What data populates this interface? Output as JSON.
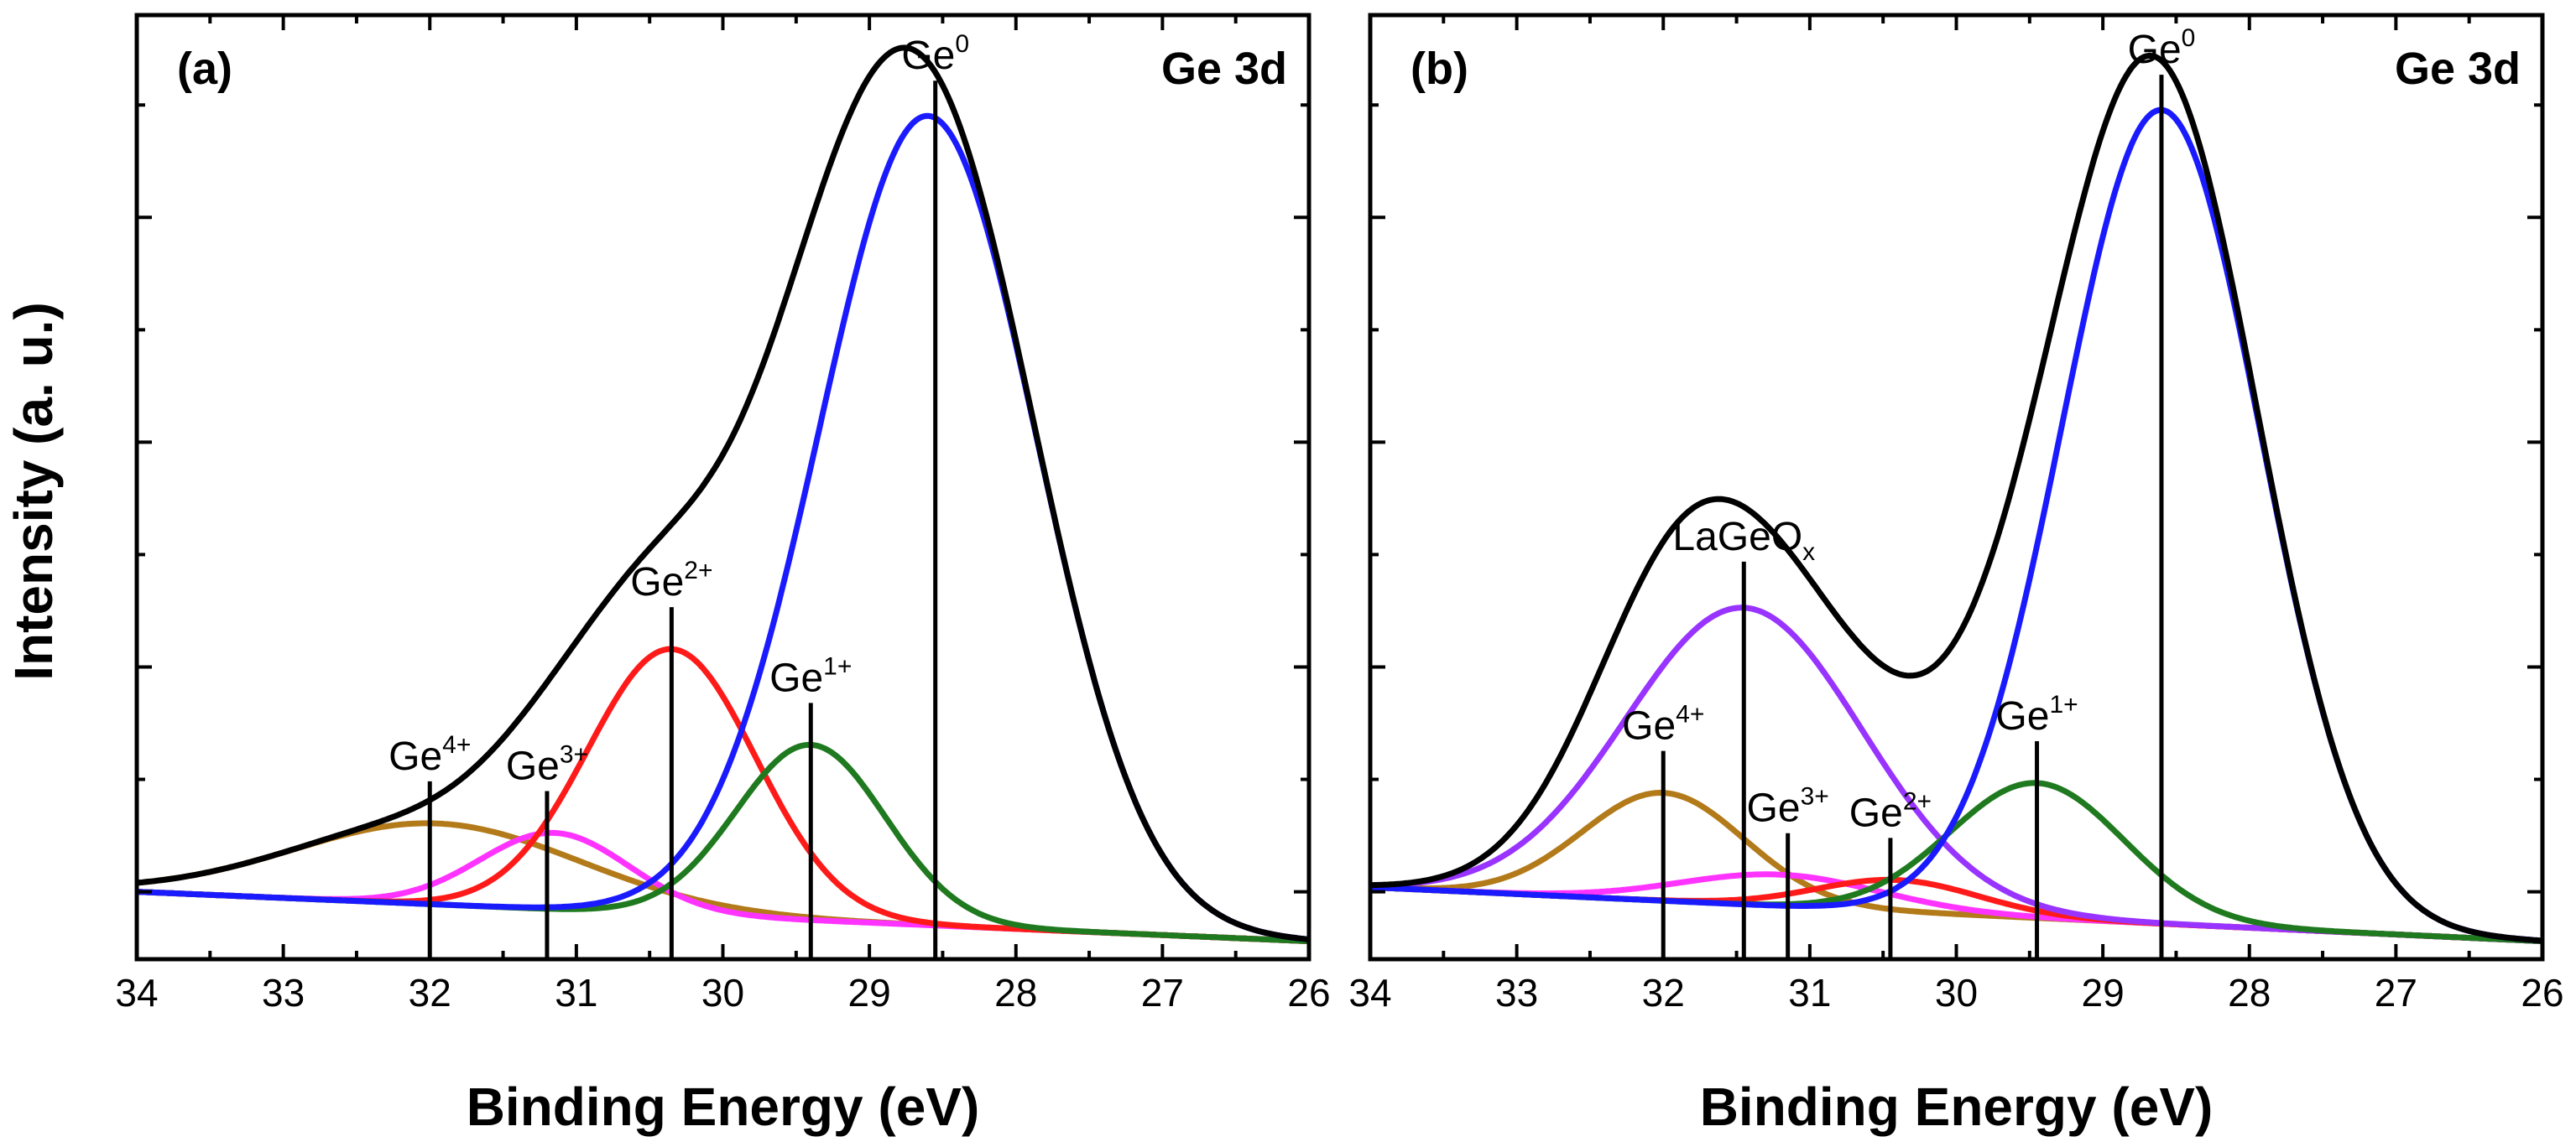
{
  "figure": {
    "ylabel": "Intensity (a. u.)"
  },
  "chart_data": [
    {
      "type": "line",
      "panel_label": "(a)",
      "title": "Ge 3d",
      "xlabel": "Binding Energy (eV)",
      "ylabel": "Intensity (a. u.)",
      "xlim": [
        34,
        26
      ],
      "ylim": [
        0,
        1.05
      ],
      "x_ticks": [
        "34",
        "33",
        "32",
        "31",
        "30",
        "29",
        "28",
        "27",
        "26"
      ],
      "y_tick_labels": "none",
      "background": {
        "value_at_34": 0.075,
        "value_at_26": 0.02
      },
      "components": [
        {
          "name": "envelope",
          "color": "#000000",
          "role": "sum"
        },
        {
          "name": "Ge0",
          "color": "#1a1aff",
          "center": 28.6,
          "height": 0.9,
          "fwhm": 1.75
        },
        {
          "name": "Ge1+",
          "color": "#1f7a1f",
          "center": 29.4,
          "height": 0.195,
          "fwhm": 1.2
        },
        {
          "name": "Ge2+",
          "color": "#ff1a1a",
          "center": 30.35,
          "height": 0.295,
          "fwhm": 1.35
        },
        {
          "name": "Ge3+",
          "color": "#ff33ff",
          "center": 31.15,
          "height": 0.085,
          "fwhm": 1.2
        },
        {
          "name": "Ge4+",
          "color": "#b37a1a",
          "center": 31.95,
          "height": 0.09,
          "fwhm": 2.3
        }
      ],
      "peak_labels": [
        {
          "label": "Ge0",
          "base": "Ge",
          "sup": "0",
          "position": 28.55
        },
        {
          "label": "Ge1+",
          "base": "Ge",
          "sup": "1+",
          "position": 29.4
        },
        {
          "label": "Ge2+",
          "base": "Ge",
          "sup": "2+",
          "position": 30.35
        },
        {
          "label": "Ge3+",
          "base": "Ge",
          "sup": "3+",
          "position": 31.2
        },
        {
          "label": "Ge4+",
          "base": "Ge",
          "sup": "4+",
          "position": 32.0
        }
      ]
    },
    {
      "type": "line",
      "panel_label": "(b)",
      "title": "Ge 3d",
      "xlabel": "Binding Energy (eV)",
      "ylabel": "Intensity (a. u.)",
      "xlim": [
        34,
        26
      ],
      "ylim": [
        0,
        1.05
      ],
      "x_ticks": [
        "34",
        "33",
        "32",
        "31",
        "30",
        "29",
        "28",
        "27",
        "26"
      ],
      "y_tick_labels": "none",
      "background": {
        "value_at_34": 0.08,
        "value_at_26": 0.02
      },
      "components": [
        {
          "name": "envelope",
          "color": "#000000",
          "role": "sum"
        },
        {
          "name": "Ge0",
          "color": "#1a1aff",
          "center": 28.6,
          "height": 0.905,
          "fwhm": 1.6
        },
        {
          "name": "LaGeOx",
          "color": "#9933ff",
          "center": 31.45,
          "height": 0.33,
          "fwhm": 1.9
        },
        {
          "name": "Ge1+",
          "color": "#1f7a1f",
          "center": 29.45,
          "height": 0.15,
          "fwhm": 1.4
        },
        {
          "name": "Ge2+",
          "color": "#ff1a1a",
          "center": 30.4,
          "height": 0.035,
          "fwhm": 1.3
        },
        {
          "name": "Ge3+",
          "color": "#ff33ff",
          "center": 31.2,
          "height": 0.035,
          "fwhm": 1.6
        },
        {
          "name": "Ge4+",
          "color": "#b37a1a",
          "center": 32.0,
          "height": 0.12,
          "fwhm": 1.3
        }
      ],
      "peak_labels": [
        {
          "label": "Ge0",
          "base": "Ge",
          "sup": "0",
          "position": 28.6
        },
        {
          "label": "LaGeOx",
          "base": "LaGeO",
          "sub": "x",
          "position": 31.45
        },
        {
          "label": "Ge1+",
          "base": "Ge",
          "sup": "1+",
          "position": 29.45
        },
        {
          "label": "Ge2+",
          "base": "Ge",
          "sup": "2+",
          "position": 30.45
        },
        {
          "label": "Ge3+",
          "base": "Ge",
          "sup": "3+",
          "position": 31.15
        },
        {
          "label": "Ge4+",
          "base": "Ge",
          "sup": "4+",
          "position": 32.0
        }
      ]
    }
  ]
}
